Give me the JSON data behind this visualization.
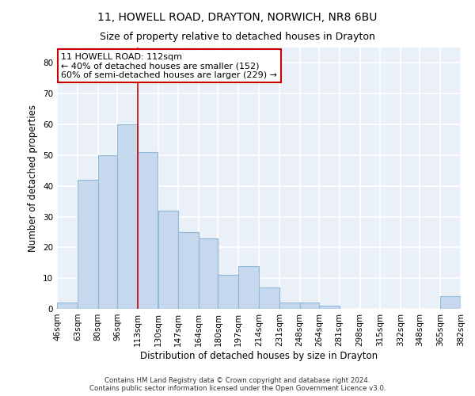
{
  "title1": "11, HOWELL ROAD, DRAYTON, NORWICH, NR8 6BU",
  "title2": "Size of property relative to detached houses in Drayton",
  "xlabel": "Distribution of detached houses by size in Drayton",
  "ylabel": "Number of detached properties",
  "bin_edges": [
    46,
    63,
    80,
    96,
    113,
    130,
    147,
    164,
    180,
    197,
    214,
    231,
    248,
    264,
    281,
    298,
    315,
    332,
    348,
    365,
    382
  ],
  "bar_heights": [
    2,
    42,
    50,
    60,
    51,
    32,
    25,
    23,
    11,
    14,
    7,
    2,
    2,
    1,
    0,
    0,
    0,
    0,
    0,
    4
  ],
  "bar_color": "#c5d8ee",
  "bar_edge_color": "#8fb8d8",
  "red_line_x": 113,
  "annotation_text": "11 HOWELL ROAD: 112sqm\n← 40% of detached houses are smaller (152)\n60% of semi-detached houses are larger (229) →",
  "annotation_box_facecolor": "#ffffff",
  "annotation_border_color": "#cc0000",
  "ylim": [
    0,
    85
  ],
  "yticks": [
    0,
    10,
    20,
    30,
    40,
    50,
    60,
    70,
    80
  ],
  "background_color": "#eaf0f8",
  "grid_color": "#ffffff",
  "footer1": "Contains HM Land Registry data © Crown copyright and database right 2024.",
  "footer2": "Contains public sector information licensed under the Open Government Licence v3.0.",
  "title_fontsize": 10,
  "subtitle_fontsize": 9,
  "axis_label_fontsize": 8.5,
  "tick_fontsize": 7.5,
  "annotation_fontsize": 8
}
